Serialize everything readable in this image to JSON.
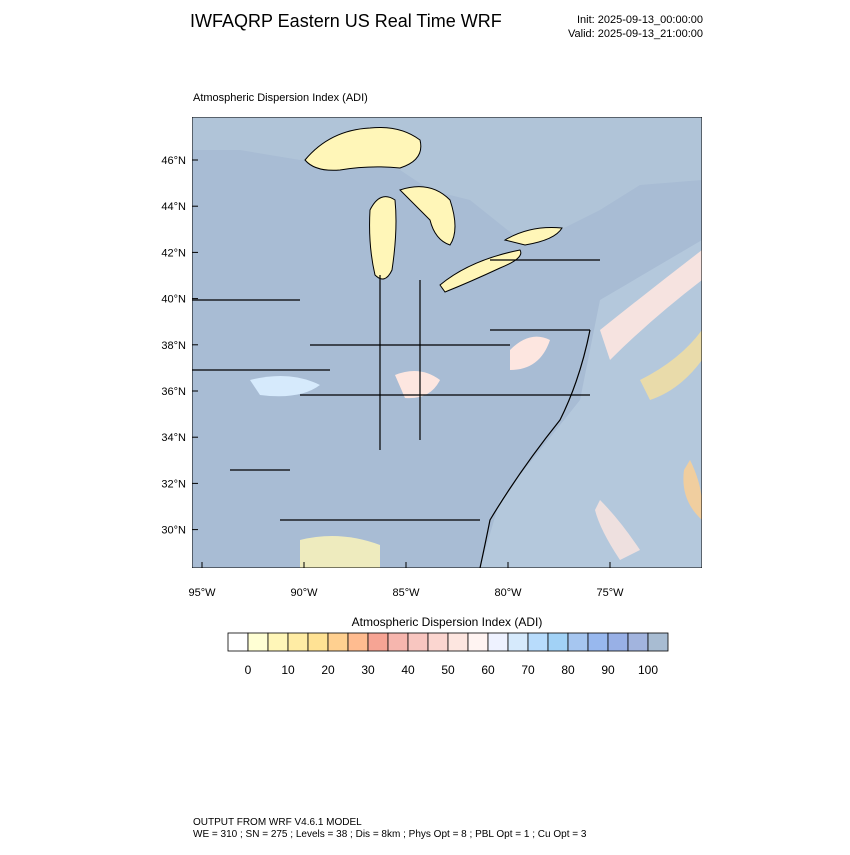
{
  "header": {
    "title": "IWFAQRP Eastern US Real Time WRF",
    "init": "Init: 2025-09-13_00:00:00",
    "valid": "Valid: 2025-09-13_21:00:00"
  },
  "map": {
    "title": "Atmospheric Dispersion Index   (ADI)",
    "lat_labels": [
      "46°N",
      "44°N",
      "42°N",
      "40°N",
      "38°N",
      "36°N",
      "34°N",
      "32°N",
      "30°N"
    ],
    "lon_labels": [
      "95°W",
      "90°W",
      "85°W",
      "80°W",
      "75°W"
    ]
  },
  "colorbar": {
    "title": "Atmospheric Dispersion Index  (ADI)",
    "colors": [
      "#ffffff",
      "#ffffd4",
      "#fff6b8",
      "#ffeca4",
      "#ffe294",
      "#ffd090",
      "#ffbc90",
      "#f6a494",
      "#f6b6ae",
      "#f8c6c0",
      "#fbd6d0",
      "#fde6e0",
      "#fff4f2",
      "#eef2ff",
      "#d6eafc",
      "#b8dcfc",
      "#a2d2f6",
      "#a6c6f0",
      "#98b8ee",
      "#98b0e6",
      "#a2b4de",
      "#a8bcd2"
    ],
    "ticks": [
      0,
      10,
      20,
      30,
      40,
      50,
      60,
      70,
      80,
      90,
      100
    ]
  },
  "footer": {
    "line1": "OUTPUT FROM WRF V4.6.1 MODEL",
    "line2": "WE = 310 ; SN = 275 ; Levels = 38 ; Dis = 8km ; Phys Opt = 8 ; PBL Opt = 1 ; Cu Opt = 3"
  }
}
